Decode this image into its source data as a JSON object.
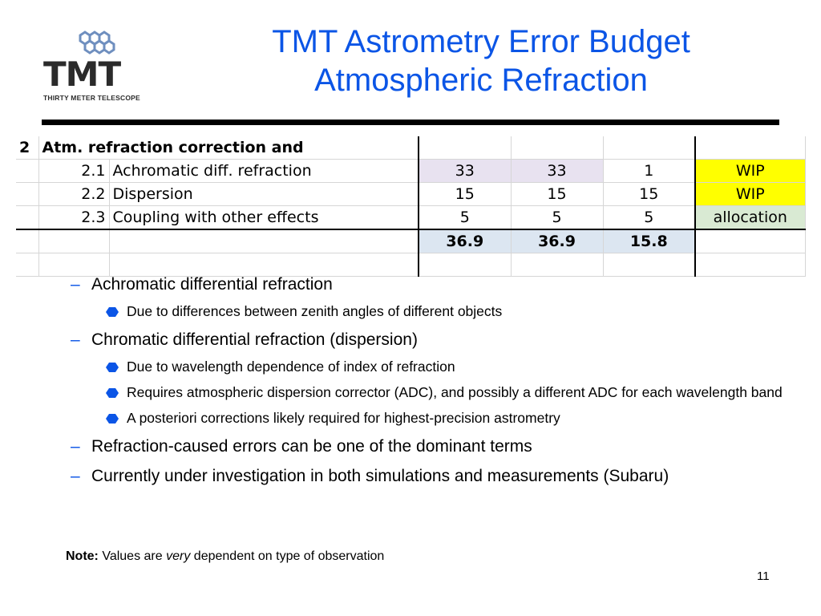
{
  "logo": {
    "brand": "TMT",
    "subtitle": "THIRTY METER TELESCOPE"
  },
  "title": {
    "line1": "TMT Astrometry Error Budget",
    "line2": "Atmospheric Refraction"
  },
  "table": {
    "header": {
      "num": "2",
      "label": "Atm. refraction correction and"
    },
    "rows": [
      {
        "num": "2.1",
        "label": "Achromatic diff. refraction",
        "c1": "33",
        "c2": "33",
        "c3": "1",
        "status": "WIP"
      },
      {
        "num": "2.2",
        "label": "Dispersion",
        "c1": "15",
        "c2": "15",
        "c3": "15",
        "status": "WIP"
      },
      {
        "num": "2.3",
        "label": "Coupling with other effects",
        "c1": "5",
        "c2": "5",
        "c3": "5",
        "status": "allocation"
      }
    ],
    "totals": {
      "c1": "36.9",
      "c2": "36.9",
      "c3": "15.8"
    }
  },
  "bullets": [
    {
      "text": "Achromatic differential refraction",
      "sub": [
        "Due to differences between zenith angles of different objects"
      ]
    },
    {
      "text": "Chromatic differential refraction (dispersion)",
      "sub": [
        "Due to wavelength dependence of index of refraction",
        "Requires atmospheric dispersion corrector (ADC), and possibly a different ADC for each wavelength band",
        "A posteriori corrections likely required for highest-precision astrometry"
      ]
    },
    {
      "text": "Refraction-caused errors can be one of the dominant terms",
      "sub": []
    },
    {
      "text": "Currently under investigation in both simulations and measurements (Subaru)",
      "sub": []
    }
  ],
  "note": {
    "label": "Note:",
    "pre": "Values are",
    "emph": "very",
    "post": "dependent on type of observation"
  },
  "page_number": "11",
  "colors": {
    "title": "#0b55e6",
    "wip": "#ffff00",
    "allocation": "#d9ead3",
    "totals": "#dce6f1"
  }
}
